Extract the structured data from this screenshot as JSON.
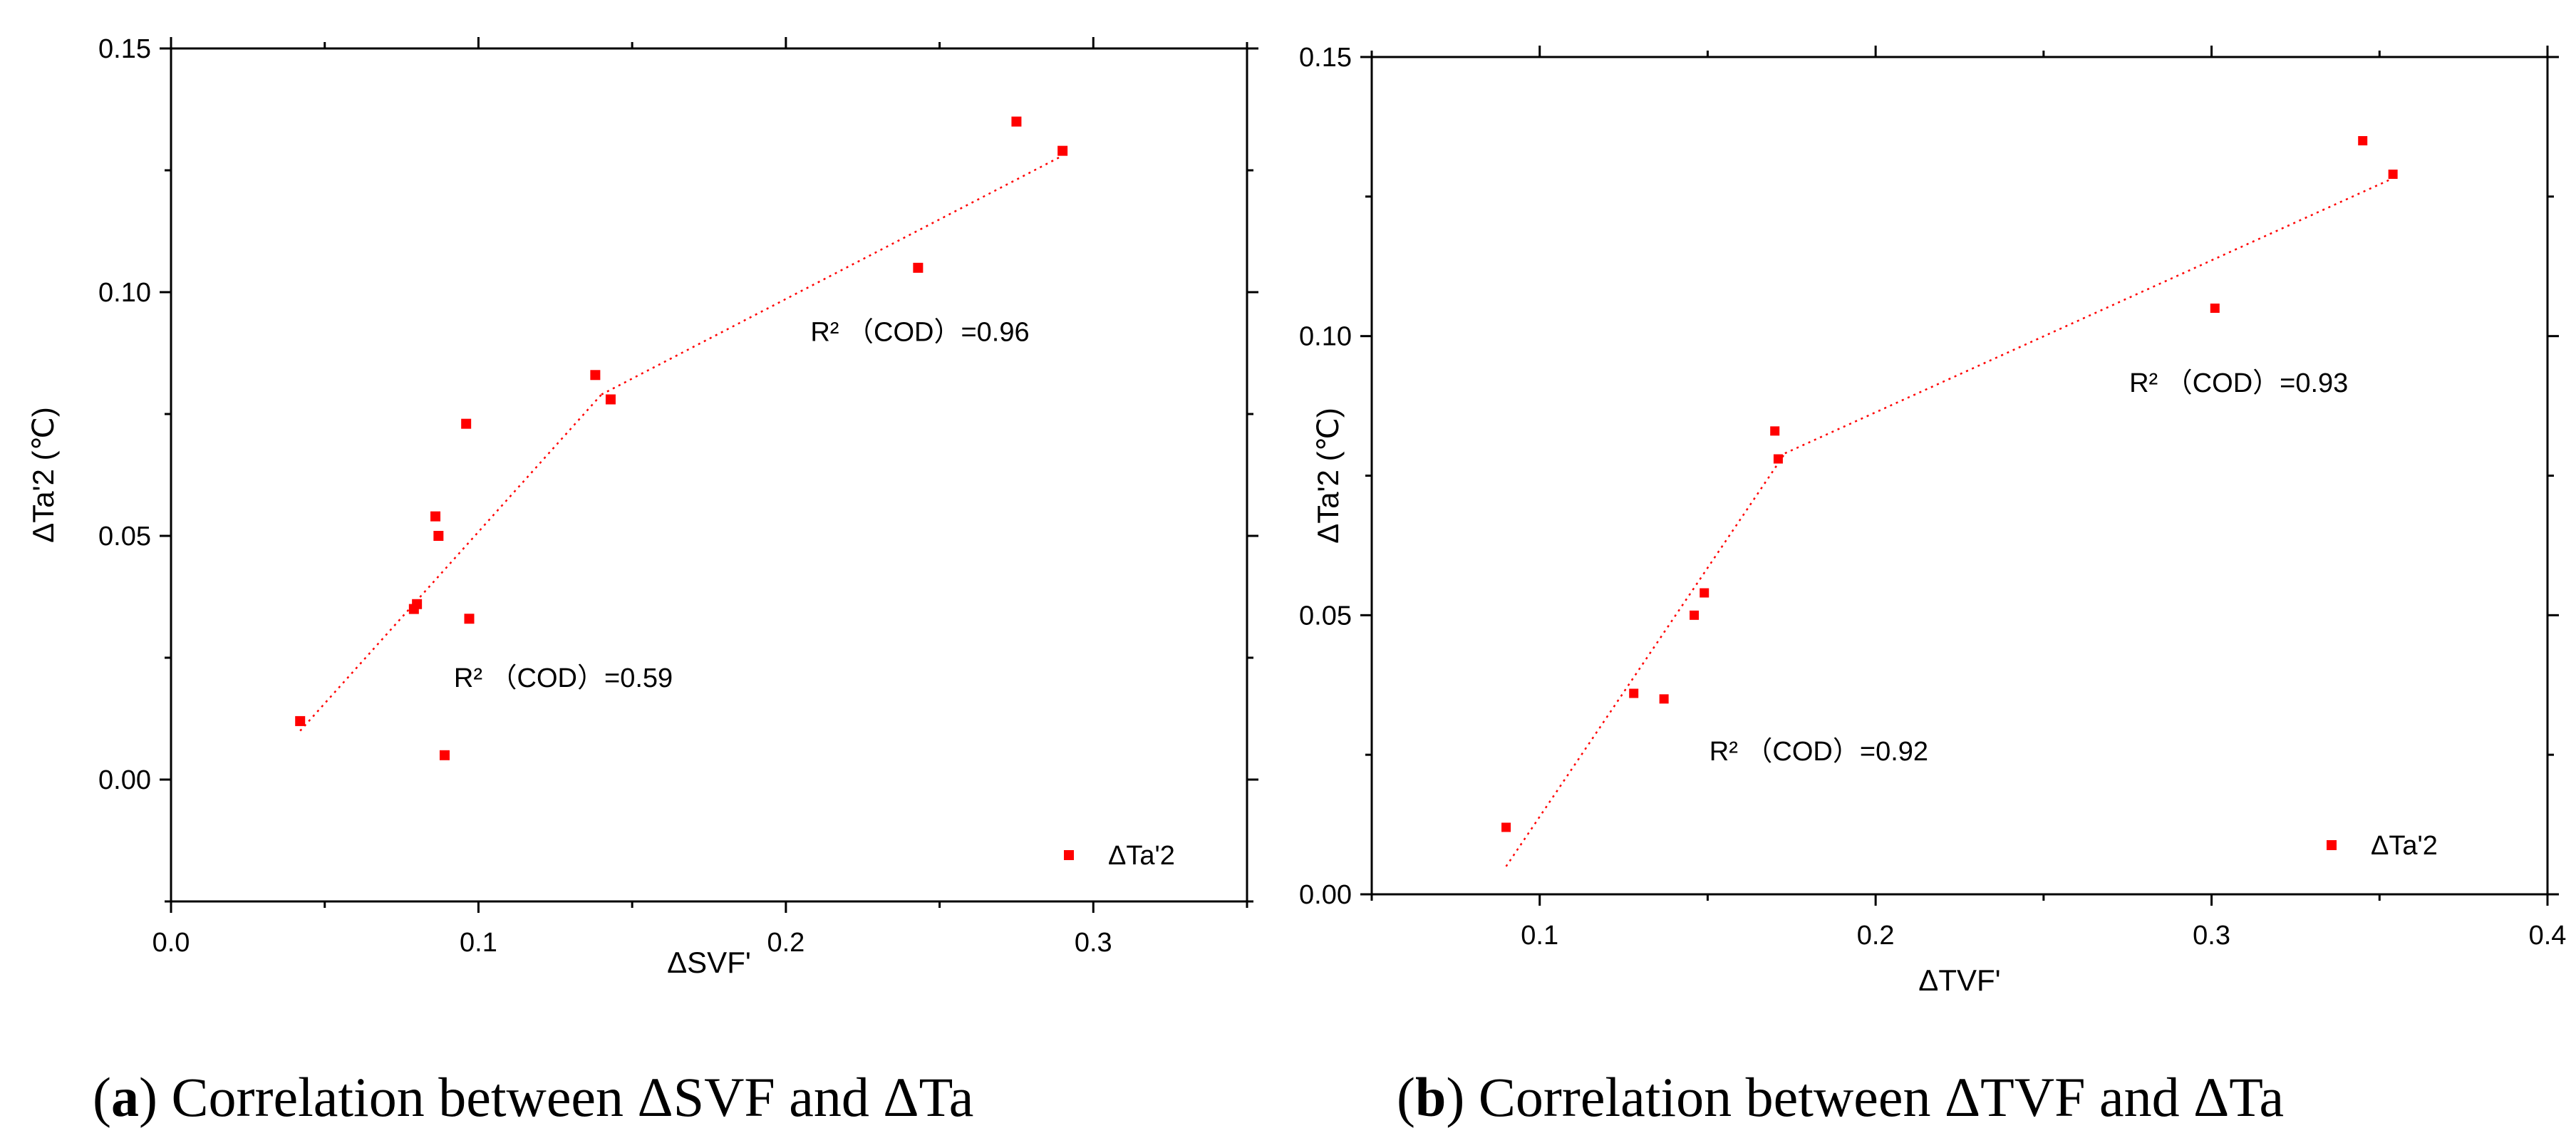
{
  "chart_data": [
    {
      "type": "scatter",
      "panel": "a",
      "caption_letter": "a",
      "caption_text": "Correlation between ΔSVF and ΔTa",
      "xlabel": "ΔSVF'",
      "ylabel": "ΔTa'2 (℃)",
      "xlim": [
        0.0,
        0.35
      ],
      "ylim": [
        -0.025,
        0.15
      ],
      "xticks": [
        0.0,
        0.1,
        0.2,
        0.3
      ],
      "xtick_labels": [
        "0.0",
        "0.1",
        "0.2",
        "0.3"
      ],
      "yticks": [
        0.0,
        0.05,
        0.1,
        0.15
      ],
      "ytick_labels": [
        "0.00",
        "0.05",
        "0.10",
        "0.15"
      ],
      "series": [
        {
          "name": "ΔTa'2",
          "color": "#ff0000",
          "x": [
            0.042,
            0.079,
            0.08,
            0.086,
            0.087,
            0.089,
            0.096,
            0.097,
            0.138,
            0.143,
            0.243,
            0.275,
            0.29
          ],
          "y": [
            0.012,
            0.035,
            0.036,
            0.054,
            0.05,
            0.005,
            0.073,
            0.033,
            0.083,
            0.078,
            0.105,
            0.135,
            0.129
          ]
        }
      ],
      "fit_lines": [
        {
          "x": [
            0.042,
            0.14
          ],
          "y": [
            0.01,
            0.079
          ],
          "r2_label": "R² （COD）=0.59",
          "label_pos": [
            0.092,
            0.019
          ]
        },
        {
          "x": [
            0.14,
            0.29
          ],
          "y": [
            0.079,
            0.128
          ],
          "r2_label": "R² （COD）=0.96",
          "label_pos": [
            0.208,
            0.09
          ]
        }
      ],
      "legend": {
        "label": "ΔTa'2",
        "position": "bottom-right"
      }
    },
    {
      "type": "scatter",
      "panel": "b",
      "caption_letter": "b",
      "caption_text": "Correlation between ΔTVF and ΔTa",
      "xlabel": "ΔTVF'",
      "ylabel": "ΔTa'2 (℃)",
      "xlim": [
        0.05,
        0.4
      ],
      "ylim": [
        0.0,
        0.15
      ],
      "xticks": [
        0.1,
        0.2,
        0.3,
        0.4
      ],
      "xtick_labels": [
        "0.1",
        "0.2",
        "0.3",
        "0.4"
      ],
      "yticks": [
        0.0,
        0.05,
        0.1,
        0.15
      ],
      "ytick_labels": [
        "0.00",
        "0.05",
        "0.10",
        "0.15"
      ],
      "series": [
        {
          "name": "ΔTa'2",
          "color": "#ff0000",
          "x": [
            0.09,
            0.128,
            0.137,
            0.146,
            0.149,
            0.17,
            0.171,
            0.301,
            0.345,
            0.354
          ],
          "y": [
            0.012,
            0.036,
            0.035,
            0.05,
            0.054,
            0.083,
            0.078,
            0.105,
            0.135,
            0.129
          ],
          "marker_size": 13
        }
      ],
      "fit_lines": [
        {
          "x": [
            0.09,
            0.173
          ],
          "y": [
            0.005,
            0.079
          ],
          "r2_label": "R² （COD）=0.92",
          "label_pos": [
            0.1505,
            0.024
          ]
        },
        {
          "x": [
            0.173,
            0.353
          ],
          "y": [
            0.079,
            0.128
          ],
          "r2_label": "R² （COD）=0.93",
          "label_pos": [
            0.2755,
            0.09
          ]
        }
      ],
      "legend": {
        "label": "ΔTa'2",
        "position": "bottom-right"
      }
    }
  ]
}
